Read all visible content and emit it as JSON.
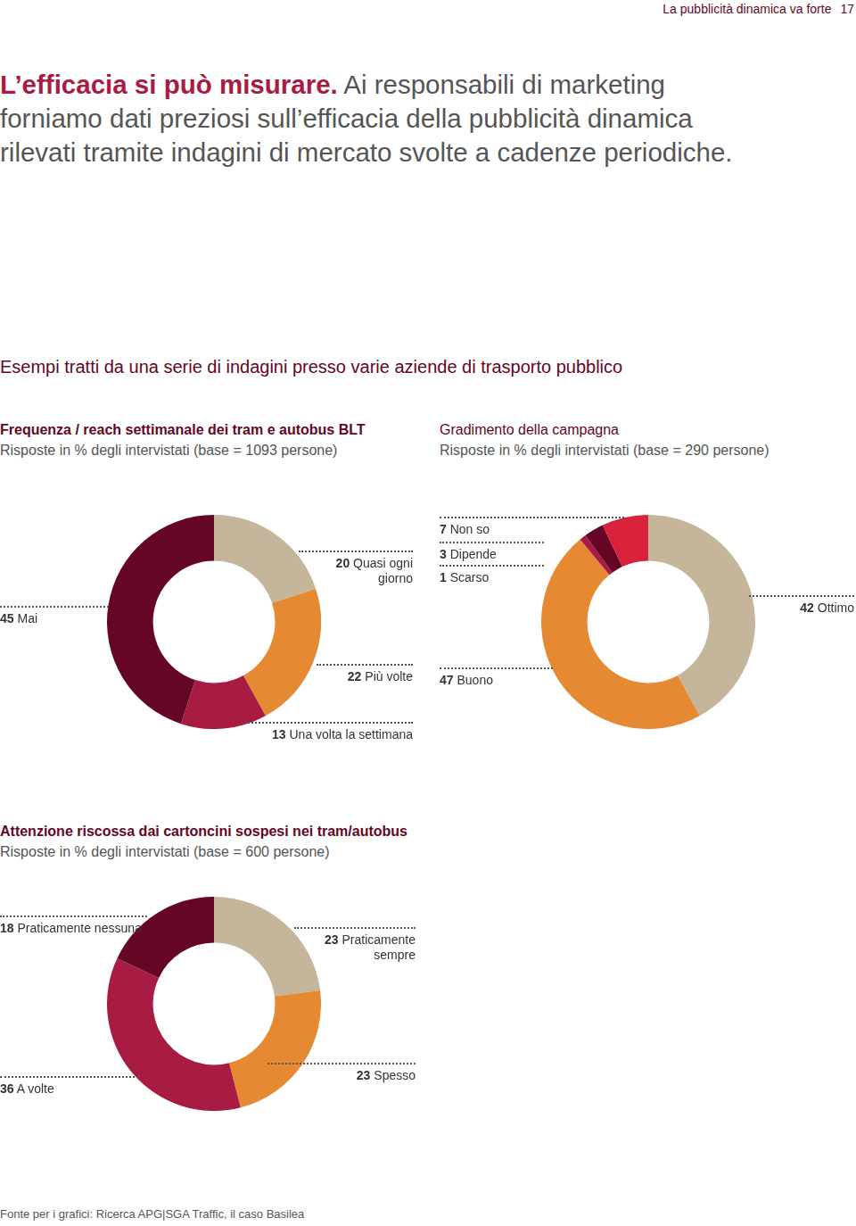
{
  "page": {
    "running_head": "La pubblicità dinamica va forte",
    "page_number": 17,
    "intro_lead": "L’efficacia si può misurare.",
    "intro_lines": [
      "Ai responsabili di marketing",
      "forniamo dati preziosi sull’efficacia della pubblicità dinamica",
      "rilevati tramite indagini di mercato svolte a cadenze periodiche."
    ],
    "section_title": "Esempi tratti da una serie di indagini presso varie aziende di trasporto pubblico",
    "source": "Fonte per i grafici: Ricerca APG|SGA Traffic, il caso Basilea"
  },
  "chart_data": [
    {
      "type": "doughnut",
      "title": "Frequenza / reach settimanale dei tram e autobus BLT",
      "subtitle": "Risposte in % degli intervistati (base = 1093 persone)",
      "categories": [
        "Quasi ogni giorno",
        "Più volte",
        "Una volta la settimana",
        "Mai"
      ],
      "values": [
        20,
        22,
        13,
        45
      ],
      "colors": [
        "#c4b59b",
        "#e58a32",
        "#a81c43",
        "#640624"
      ],
      "data_labels": true,
      "legend": "none"
    },
    {
      "type": "doughnut",
      "title": "Gradimento della campagna",
      "subtitle": "Risposte in % degli intervistati (base = 290 persone)",
      "categories": [
        "Ottimo",
        "Buono",
        "Scarso",
        "Dipende",
        "Non so"
      ],
      "values": [
        42,
        47,
        1,
        3,
        7
      ],
      "colors": [
        "#c4b59b",
        "#e58a32",
        "#a81c43",
        "#640624",
        "#d8213b"
      ],
      "data_labels": true,
      "legend": "none"
    },
    {
      "type": "doughnut",
      "title": "Attenzione riscossa dai cartoncini sospesi nei tram/autobus",
      "subtitle": "Risposte in % degli intervistati (base = 600 persone)",
      "categories": [
        "Praticamente sempre",
        "Spesso",
        "A volte",
        "Praticamente nessuna"
      ],
      "values": [
        23,
        23,
        36,
        18
      ],
      "colors": [
        "#c4b59b",
        "#e58a32",
        "#a81c43",
        "#640624"
      ],
      "data_labels": true,
      "legend": "none"
    }
  ]
}
